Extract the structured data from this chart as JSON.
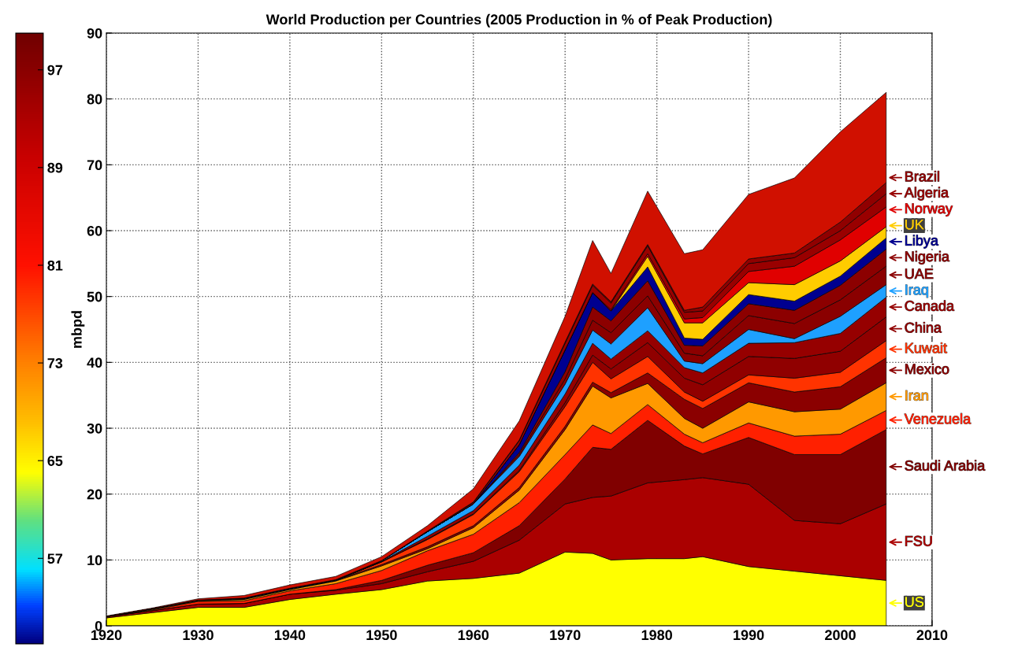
{
  "chart_data": {
    "type": "area",
    "stacked": true,
    "title": "World Production per Countries (2005 Production in % of Peak Production)",
    "ylabel": "mbpd",
    "x": [
      1920,
      1925,
      1930,
      1935,
      1940,
      1945,
      1950,
      1955,
      1960,
      1965,
      1970,
      1973,
      1975,
      1979,
      1983,
      1985,
      1990,
      1995,
      2000,
      2005
    ],
    "series": [
      {
        "name": "US",
        "color": "#ffff00",
        "values": [
          1.2,
          2.0,
          2.8,
          2.8,
          4.0,
          4.8,
          5.5,
          6.8,
          7.2,
          8.0,
          11.2,
          11.0,
          10.0,
          10.2,
          10.2,
          10.5,
          9.0,
          8.3,
          7.6,
          6.9
        ]
      },
      {
        "name": "FSU",
        "color": "#aa0000",
        "values": [
          0.2,
          0.3,
          0.5,
          0.6,
          0.8,
          0.6,
          0.9,
          1.4,
          2.6,
          5.0,
          7.3,
          8.5,
          9.7,
          11.5,
          12.0,
          12.0,
          12.5,
          7.7,
          7.9,
          11.6
        ]
      },
      {
        "name": "Saudi Arabia",
        "color": "#800000",
        "values": [
          0,
          0,
          0,
          0,
          0,
          0.1,
          0.5,
          1.0,
          1.3,
          2.2,
          3.8,
          7.6,
          7.1,
          9.5,
          5.1,
          3.6,
          7.1,
          10.0,
          10.5,
          11.3
        ]
      },
      {
        "name": "Venezuela",
        "color": "#ff2000",
        "values": [
          0,
          0.1,
          0.4,
          0.4,
          0.5,
          0.9,
          1.5,
          2.2,
          2.8,
          3.5,
          3.7,
          3.4,
          2.4,
          2.4,
          1.8,
          1.7,
          2.2,
          2.8,
          3.1,
          2.9
        ]
      },
      {
        "name": "Iran",
        "color": "#ff9900",
        "values": [
          0,
          0.1,
          0.1,
          0.2,
          0.2,
          0.4,
          0.7,
          0.3,
          1.0,
          1.9,
          3.8,
          5.9,
          5.4,
          3.2,
          2.4,
          2.2,
          3.2,
          3.7,
          3.8,
          4.2
        ]
      },
      {
        "name": "Mexico",
        "color": "#8b0000",
        "values": [
          0,
          0.1,
          0.1,
          0.1,
          0.1,
          0.1,
          0.2,
          0.3,
          0.3,
          0.4,
          0.5,
          0.6,
          0.8,
          1.6,
          2.9,
          3.0,
          2.9,
          3.0,
          3.4,
          3.8
        ]
      },
      {
        "name": "Kuwait",
        "color": "#ff3300",
        "values": [
          0,
          0,
          0,
          0,
          0,
          0,
          0.4,
          1.1,
          1.7,
          2.4,
          3.0,
          3.0,
          2.1,
          2.5,
          1.1,
          1.1,
          1.2,
          2.1,
          2.2,
          2.6
        ]
      },
      {
        "name": "China",
        "color": "#900000",
        "values": [
          0,
          0,
          0,
          0,
          0,
          0,
          0,
          0.1,
          0.1,
          0.2,
          0.6,
          1.1,
          1.5,
          2.1,
          2.1,
          2.5,
          2.8,
          3.0,
          3.2,
          3.6
        ]
      },
      {
        "name": "Canada",
        "color": "#960000",
        "values": [
          0,
          0,
          0,
          0,
          0,
          0,
          0.1,
          0.4,
          0.5,
          0.8,
          1.3,
          1.8,
          1.5,
          1.8,
          1.6,
          1.8,
          2.0,
          2.4,
          2.7,
          3.0
        ]
      },
      {
        "name": "Iraq",
        "color": "#1ea0ff",
        "values": [
          0,
          0,
          0,
          0.1,
          0.1,
          0.1,
          0.1,
          0.7,
          1.0,
          1.3,
          1.5,
          2.0,
          2.3,
          3.5,
          1.0,
          1.4,
          2.1,
          0.6,
          2.6,
          1.9
        ]
      },
      {
        "name": "UAE",
        "color": "#8a0000",
        "values": [
          0,
          0,
          0,
          0,
          0,
          0,
          0,
          0,
          0,
          0.3,
          0.8,
          1.5,
          1.7,
          1.8,
          1.2,
          1.2,
          2.1,
          2.3,
          2.5,
          2.8
        ]
      },
      {
        "name": "Nigeria",
        "color": "#8c0000",
        "values": [
          0,
          0,
          0,
          0,
          0,
          0,
          0,
          0,
          0,
          0.3,
          1.1,
          2.0,
          1.8,
          2.3,
          1.2,
          1.5,
          1.8,
          2.0,
          2.2,
          2.6
        ]
      },
      {
        "name": "Libya",
        "color": "#000090",
        "values": [
          0,
          0,
          0,
          0,
          0,
          0,
          0,
          0,
          0,
          1.2,
          3.3,
          2.2,
          1.5,
          2.1,
          1.1,
          1.0,
          1.4,
          1.4,
          1.4,
          1.7
        ]
      },
      {
        "name": "UK",
        "color": "#ffcc00",
        "values": [
          0,
          0,
          0,
          0,
          0,
          0,
          0,
          0,
          0,
          0,
          0,
          0,
          0,
          1.6,
          2.3,
          2.5,
          1.8,
          2.5,
          2.3,
          1.7
        ]
      },
      {
        "name": "Norway",
        "color": "#e00000",
        "values": [
          0,
          0,
          0,
          0,
          0,
          0,
          0,
          0,
          0,
          0,
          0,
          0,
          0.2,
          0.4,
          0.6,
          0.8,
          1.7,
          2.8,
          3.2,
          3.0
        ]
      },
      {
        "name": "Algeria",
        "color": "#990000",
        "values": [
          0,
          0,
          0,
          0,
          0,
          0,
          0,
          0,
          0.2,
          0.6,
          1.0,
          1.1,
          1.0,
          1.2,
          1.0,
          1.0,
          1.2,
          1.3,
          1.4,
          2.0
        ]
      },
      {
        "name": "Brazil",
        "color": "#900000",
        "values": [
          0,
          0,
          0,
          0,
          0,
          0,
          0,
          0.1,
          0.1,
          0.1,
          0.2,
          0.2,
          0.2,
          0.2,
          0.3,
          0.6,
          0.7,
          0.7,
          1.3,
          1.7
        ]
      },
      {
        "color": "#d01000",
        "values": [
          0.1,
          0.1,
          0.2,
          0.4,
          0.5,
          0.5,
          0.6,
          0.8,
          2.0,
          2.9,
          3.9,
          6.6,
          4.3,
          8.1,
          8.6,
          8.7,
          9.8,
          11.4,
          13.7,
          13.7
        ]
      }
    ],
    "xlim": [
      1920,
      2010
    ],
    "ylim": [
      0,
      90
    ],
    "xticks": [
      1920,
      1930,
      1940,
      1950,
      1960,
      1970,
      1980,
      1990,
      2000,
      2010
    ],
    "yticks": [
      0,
      10,
      20,
      30,
      40,
      50,
      60,
      70,
      80,
      90
    ],
    "grid": true,
    "legend": "right",
    "clim": [
      50,
      100
    ],
    "cticks": [
      57,
      65,
      73,
      81,
      89,
      97
    ]
  }
}
